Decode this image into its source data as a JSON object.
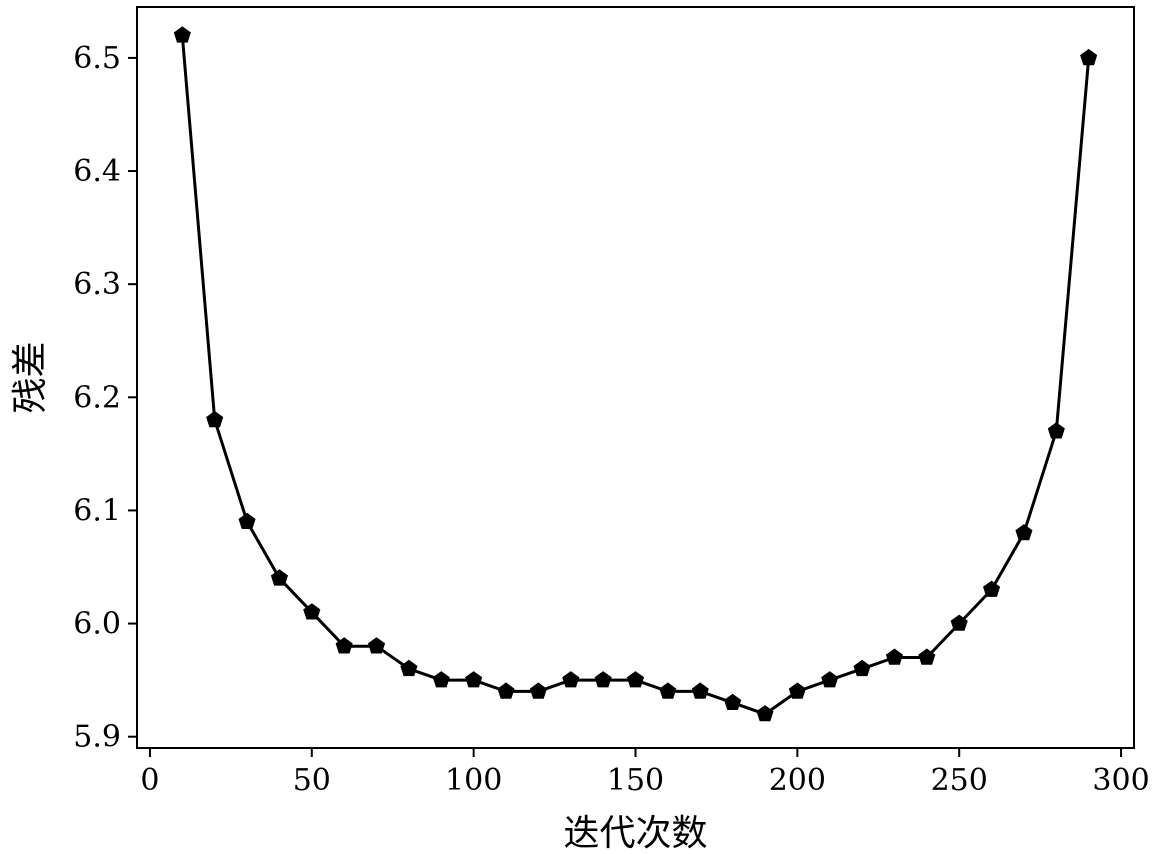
{
  "chart_data": {
    "type": "line",
    "title": "",
    "xlabel": "迭代次数",
    "ylabel": "残差",
    "xlim": [
      -4,
      304
    ],
    "ylim": [
      5.89,
      6.545
    ],
    "xticks": [
      0,
      50,
      100,
      150,
      200,
      250,
      300
    ],
    "xtick_labels": [
      "0",
      "50",
      "100",
      "150",
      "200",
      "250",
      "300"
    ],
    "yticks": [
      5.9,
      6.0,
      6.1,
      6.2,
      6.3,
      6.4,
      6.5
    ],
    "ytick_labels": [
      "5.9",
      "6.0",
      "6.1",
      "6.2",
      "6.3",
      "6.4",
      "6.5"
    ],
    "grid": false,
    "legend": "none",
    "marker": "pentagon",
    "color": "#000000",
    "series": [
      {
        "x": [
          10,
          20,
          30,
          40,
          50,
          60,
          70,
          80,
          90,
          100,
          110,
          120,
          130,
          140,
          150,
          160,
          170,
          180,
          190,
          200,
          210,
          220,
          230,
          240,
          250,
          260,
          270,
          280,
          290
        ],
        "y": [
          6.52,
          6.18,
          6.09,
          6.04,
          6.01,
          5.98,
          5.98,
          5.96,
          5.95,
          5.95,
          5.94,
          5.94,
          5.95,
          5.95,
          5.95,
          5.94,
          5.94,
          5.93,
          5.92,
          5.94,
          5.95,
          5.96,
          5.97,
          5.97,
          6.0,
          6.03,
          6.08,
          6.17,
          6.5
        ]
      }
    ]
  }
}
